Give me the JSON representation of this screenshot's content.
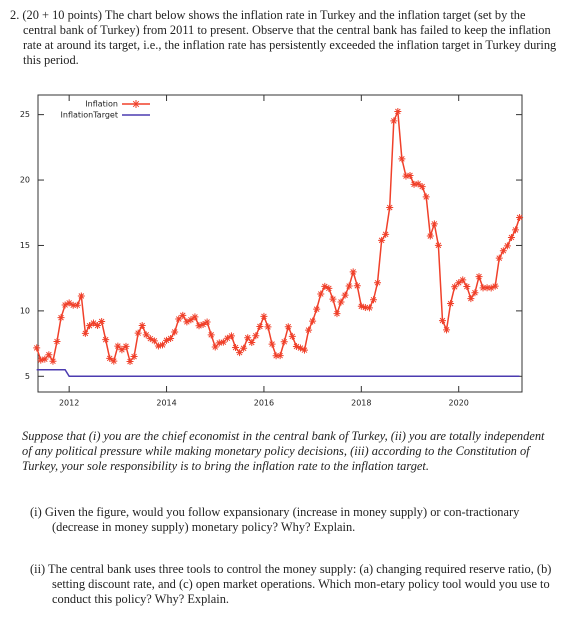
{
  "question": {
    "number": "2.",
    "text": "(20 + 10 points) The chart below shows the inflation rate in Turkey and the inflation target (set by the central bank of Turkey) from 2011 to present. Observe that the central bank has failed to keep the inflation rate at around its target, i.e., the inflation rate has persistently exceeded the inflation target in Turkey during this period."
  },
  "chart_data": {
    "type": "line",
    "legend": "upper left",
    "grid": false,
    "xlim": [
      2011.36,
      2021.3
    ],
    "xticks": [
      2012,
      2014,
      2016,
      2018,
      2020
    ],
    "ylim": [
      3.8,
      26.5
    ],
    "yticks": [
      5,
      10,
      15,
      20,
      25
    ],
    "series": [
      {
        "name": "Inflation",
        "color": "#f0402a",
        "marker": "star",
        "x": [
          2011.333,
          2011.417,
          2011.5,
          2011.583,
          2011.667,
          2011.75,
          2011.833,
          2011.917,
          2012,
          2012.083,
          2012.167,
          2012.25,
          2012.333,
          2012.417,
          2012.5,
          2012.583,
          2012.667,
          2012.75,
          2012.833,
          2012.917,
          2013,
          2013.083,
          2013.167,
          2013.25,
          2013.333,
          2013.417,
          2013.5,
          2013.583,
          2013.667,
          2013.75,
          2013.833,
          2013.917,
          2014,
          2014.083,
          2014.167,
          2014.25,
          2014.333,
          2014.417,
          2014.5,
          2014.583,
          2014.667,
          2014.75,
          2014.833,
          2014.917,
          2015,
          2015.083,
          2015.167,
          2015.25,
          2015.333,
          2015.417,
          2015.5,
          2015.583,
          2015.667,
          2015.75,
          2015.833,
          2015.917,
          2016,
          2016.083,
          2016.167,
          2016.25,
          2016.333,
          2016.417,
          2016.5,
          2016.583,
          2016.667,
          2016.75,
          2016.833,
          2016.917,
          2017,
          2017.083,
          2017.167,
          2017.25,
          2017.333,
          2017.417,
          2017.5,
          2017.583,
          2017.667,
          2017.75,
          2017.833,
          2017.917,
          2018,
          2018.083,
          2018.167,
          2018.25,
          2018.333,
          2018.417,
          2018.5,
          2018.583,
          2018.667,
          2018.75,
          2018.833,
          2018.917,
          2019,
          2019.083,
          2019.167,
          2019.25,
          2019.333,
          2019.417,
          2019.5,
          2019.583,
          2019.667,
          2019.75,
          2019.833,
          2019.917,
          2020,
          2020.083,
          2020.167,
          2020.25,
          2020.333,
          2020.417,
          2020.5,
          2020.583,
          2020.667,
          2020.75,
          2020.833,
          2020.917,
          2021,
          2021.083,
          2021.167,
          2021.25
        ],
        "values": [
          7.17,
          6.24,
          6.31,
          6.65,
          6.15,
          7.66,
          9.48,
          10.45,
          10.61,
          10.43,
          10.43,
          11.14,
          8.28,
          8.87,
          9.07,
          8.88,
          9.19,
          7.8,
          6.37,
          6.16,
          7.31,
          7.03,
          7.29,
          6.13,
          6.51,
          8.3,
          8.88,
          8.17,
          7.88,
          7.71,
          7.32,
          7.4,
          7.75,
          7.89,
          8.39,
          9.38,
          9.66,
          9.16,
          9.32,
          9.54,
          8.86,
          8.96,
          9.15,
          8.17,
          7.24,
          7.55,
          7.61,
          7.91,
          8.09,
          7.2,
          6.81,
          7.14,
          7.95,
          7.58,
          8.1,
          8.81,
          9.58,
          8.78,
          7.46,
          6.57,
          6.58,
          7.64,
          8.79,
          8.05,
          7.28,
          7.16,
          7.0,
          8.53,
          9.22,
          10.13,
          11.29,
          11.87,
          11.72,
          10.9,
          9.79,
          10.68,
          11.2,
          11.9,
          12.98,
          11.92,
          10.35,
          10.26,
          10.23,
          10.85,
          12.15,
          15.39,
          15.85,
          17.9,
          24.52,
          25.24,
          21.62,
          20.3,
          20.35,
          19.67,
          19.71,
          19.5,
          18.71,
          15.72,
          16.65,
          15.01,
          9.26,
          8.55,
          10.56,
          11.84,
          12.15,
          12.37,
          11.86,
          10.94,
          11.39,
          12.62,
          11.76,
          11.77,
          11.75,
          11.89,
          14.03,
          14.6,
          14.97,
          15.61,
          16.19,
          17.14
        ]
      },
      {
        "name": "InflationTarget",
        "color": "#4b3bb0",
        "x": [
          2011.333,
          2011.917,
          2012,
          2021.25
        ],
        "values": [
          5.5,
          5.5,
          5,
          5
        ]
      }
    ]
  },
  "scenario": "Suppose that (i) you are the chief economist in the central bank of Turkey, (ii) you are totally independent of any political pressure while making monetary policy decisions, (iii) according to the Constitution of Turkey, your sole responsibility is to bring the inflation rate to the inflation target.",
  "items": [
    {
      "label": "(i)",
      "text": "Given the figure, would you follow expansionary (increase in money supply) or con-tractionary (decrease in money supply) monetary policy? Why? Explain."
    },
    {
      "label": "(ii)",
      "text": "The central bank uses three tools to control the money supply: (a) changing required reserve ratio, (b) setting discount rate, and (c) open market operations. Which mon-etary policy tool would you use to conduct this policy? Why? Explain."
    }
  ]
}
